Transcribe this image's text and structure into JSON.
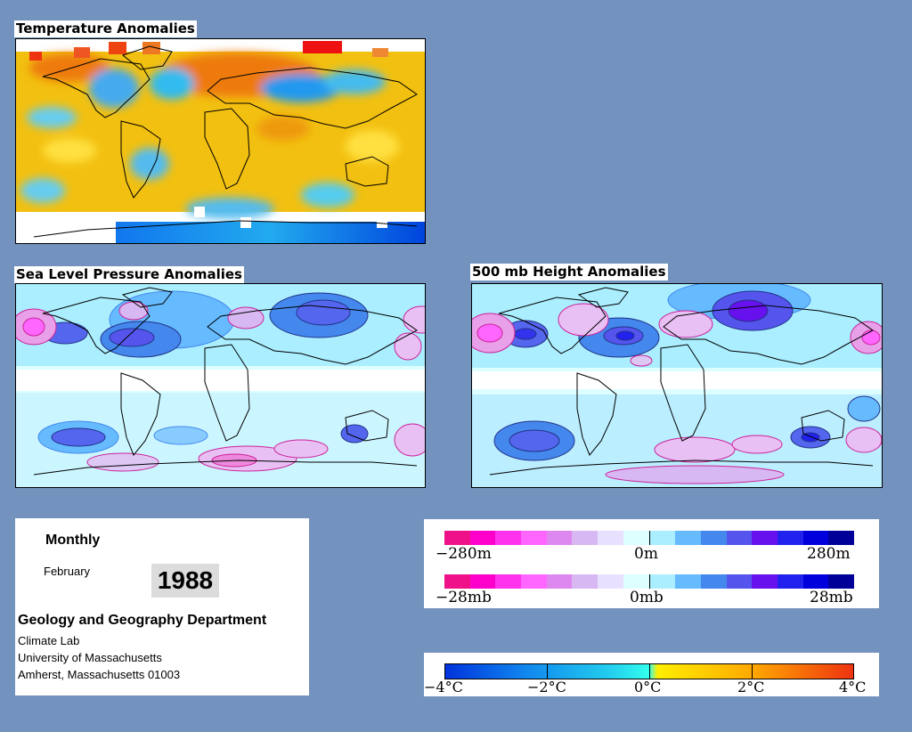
{
  "panels": {
    "temperature": {
      "title": "Temperature Anomalies"
    },
    "slp": {
      "title": "Sea Level Pressure Anomalies"
    },
    "height": {
      "title": "500 mb Height Anomalies"
    }
  },
  "info": {
    "period": "Monthly",
    "month": "February",
    "year": "1988",
    "department": "Geology and Geography Department",
    "lab": "Climate Lab",
    "university": "University of Massachusetts",
    "address": "Amherst, Massachusetts 01003"
  },
  "legend_height": {
    "min_label": "−280m",
    "mid_label": "0m",
    "max_label": "280m",
    "colors": [
      "#ee1188",
      "#ff00cc",
      "#ff33ee",
      "#ff66ff",
      "#dd88ee",
      "#d8b8f2",
      "#e8e0ff",
      "#ddffff",
      "#aaeeff",
      "#66bbff",
      "#4488ee",
      "#5555ee",
      "#6611ee",
      "#2222ee",
      "#0000dd",
      "#000099"
    ]
  },
  "legend_pressure": {
    "min_label": "−28mb",
    "mid_label": "0mb",
    "max_label": "28mb",
    "colors": [
      "#ee1188",
      "#ff00cc",
      "#ff33ee",
      "#ff66ff",
      "#dd88ee",
      "#d8b8f2",
      "#e8e0ff",
      "#ddffff",
      "#aaeeff",
      "#66bbff",
      "#4488ee",
      "#5555ee",
      "#6611ee",
      "#2222ee",
      "#0000dd",
      "#000099"
    ]
  },
  "legend_temperature": {
    "labels": [
      "−4°C",
      "−2°C",
      "0°C",
      "2°C",
      "4°C"
    ]
  },
  "colors": {
    "page_background": "#7392bd",
    "temperature_warm": "#f2c010",
    "temperature_cool": "#33bbee",
    "pressure_negative": "#6677dd",
    "pressure_positive": "#e8a0e8"
  }
}
